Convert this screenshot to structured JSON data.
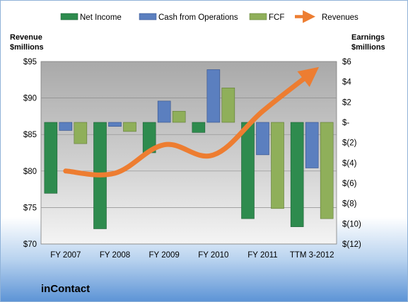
{
  "chart_data": {
    "type": "bar",
    "company": "inContact",
    "categories": [
      "FY 2007",
      "FY 2008",
      "FY 2009",
      "FY 2010",
      "FY 2011",
      "TTM 3-2012"
    ],
    "left_axis": {
      "title_line1": "Revenue",
      "title_line2": "$millions",
      "ylim": [
        70,
        95
      ],
      "ticks": [
        70,
        75,
        80,
        85,
        90,
        95
      ],
      "tick_labels": [
        "$70",
        "$75",
        "$80",
        "$85",
        "$90",
        "$95"
      ]
    },
    "right_axis": {
      "title_line1": "Earnings",
      "title_line2": "$millions",
      "ylim": [
        -12,
        6
      ],
      "ticks": [
        6,
        4,
        2,
        0,
        -2,
        -4,
        -6,
        -8,
        -10,
        -12
      ],
      "tick_labels": [
        "$6",
        "$4",
        "$2",
        "$-",
        "$(2)",
        "$(4)",
        "$(6)",
        "$(8)",
        "$(10)",
        "$(12)"
      ]
    },
    "series": [
      {
        "name": "Net Income",
        "type": "bar",
        "axis": "right",
        "color": "#2e8b4e",
        "values": [
          -7.0,
          -10.5,
          -3.0,
          -1.0,
          -9.5,
          -10.3
        ]
      },
      {
        "name": "Cash from Operations",
        "type": "bar",
        "axis": "right",
        "color": "#5b7fbf",
        "values": [
          -0.8,
          -0.4,
          2.1,
          5.2,
          -3.2,
          -4.5
        ]
      },
      {
        "name": "FCF",
        "type": "bar",
        "axis": "right",
        "color": "#8faf5a",
        "values": [
          -2.1,
          -0.9,
          1.1,
          3.4,
          -8.5,
          -9.5
        ]
      },
      {
        "name": "Revenues",
        "type": "line",
        "axis": "left",
        "color": "#ed7d31",
        "values": [
          80.0,
          79.7,
          83.6,
          82.2,
          88.2,
          93.5
        ]
      }
    ],
    "grid": true,
    "legend_position": "top"
  }
}
